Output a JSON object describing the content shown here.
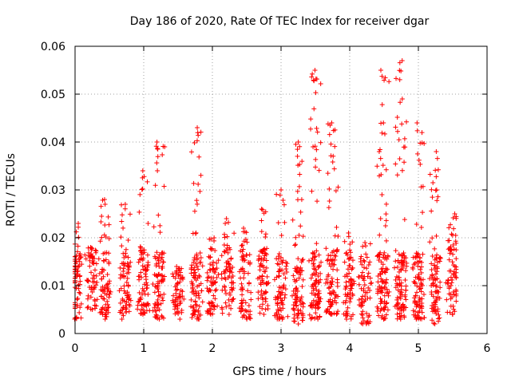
{
  "chart_data": {
    "type": "scatter",
    "title": "Day 186 of 2020, Rate Of TEC Index for receiver dgar",
    "xlabel": "GPS time / hours",
    "ylabel": "ROTI / TECUs",
    "xlim": [
      0,
      6
    ],
    "ylim": [
      0,
      0.06
    ],
    "xticks": [
      0,
      1,
      2,
      3,
      4,
      5,
      6
    ],
    "xtick_labels": [
      "0",
      "1",
      "2",
      "3",
      "4",
      "5",
      "6"
    ],
    "yticks": [
      0,
      0.01,
      0.02,
      0.03,
      0.04,
      0.05,
      0.06
    ],
    "ytick_labels": [
      "0",
      "0.01",
      "0.02",
      "0.03",
      "0.04",
      "0.05",
      "0.06"
    ],
    "grid": true,
    "marker": "+",
    "color": "#ff0000",
    "x_range": [
      0,
      5.55
    ],
    "clusters": [
      {
        "x": 0.02,
        "lo": 0.003,
        "hi": 0.023
      },
      {
        "x": 0.24,
        "lo": 0.005,
        "hi": 0.018
      },
      {
        "x": 0.44,
        "lo": 0.003,
        "hi": 0.028
      },
      {
        "x": 0.73,
        "lo": 0.003,
        "hi": 0.027
      },
      {
        "x": 0.99,
        "lo": 0.004,
        "hi": 0.034
      },
      {
        "x": 1.22,
        "lo": 0.003,
        "hi": 0.04
      },
      {
        "x": 1.5,
        "lo": 0.003,
        "hi": 0.014
      },
      {
        "x": 1.77,
        "lo": 0.003,
        "hi": 0.043
      },
      {
        "x": 2.0,
        "lo": 0.004,
        "hi": 0.02
      },
      {
        "x": 2.22,
        "lo": 0.004,
        "hi": 0.024
      },
      {
        "x": 2.48,
        "lo": 0.003,
        "hi": 0.022
      },
      {
        "x": 2.74,
        "lo": 0.004,
        "hi": 0.026
      },
      {
        "x": 3.0,
        "lo": 0.003,
        "hi": 0.03
      },
      {
        "x": 3.25,
        "lo": 0.002,
        "hi": 0.04
      },
      {
        "x": 3.5,
        "lo": 0.003,
        "hi": 0.055
      },
      {
        "x": 3.74,
        "lo": 0.004,
        "hi": 0.044
      },
      {
        "x": 3.98,
        "lo": 0.003,
        "hi": 0.021
      },
      {
        "x": 4.22,
        "lo": 0.002,
        "hi": 0.019
      },
      {
        "x": 4.48,
        "lo": 0.003,
        "hi": 0.055
      },
      {
        "x": 4.75,
        "lo": 0.003,
        "hi": 0.057
      },
      {
        "x": 5.0,
        "lo": 0.003,
        "hi": 0.044
      },
      {
        "x": 5.25,
        "lo": 0.002,
        "hi": 0.038
      },
      {
        "x": 5.5,
        "lo": 0.004,
        "hi": 0.025
      }
    ]
  }
}
